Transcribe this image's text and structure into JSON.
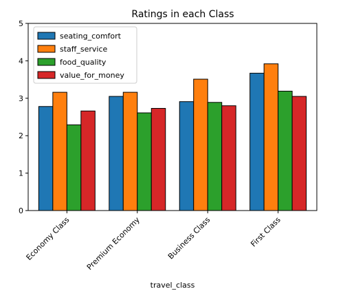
{
  "chart_data": {
    "type": "bar",
    "title": "Ratings in each Class",
    "xlabel": "travel_class",
    "ylabel": "",
    "ylim": [
      0,
      5
    ],
    "yticks": [
      0,
      1,
      2,
      3,
      4,
      5
    ],
    "categories": [
      "Economy Class",
      "Premium Economy",
      "Business Class",
      "First Class"
    ],
    "series": [
      {
        "name": "seating_comfort",
        "color": "#1f77b4",
        "values": [
          2.78,
          3.05,
          2.91,
          3.67
        ]
      },
      {
        "name": "staff_service",
        "color": "#ff7f0e",
        "values": [
          3.16,
          3.16,
          3.51,
          3.92
        ]
      },
      {
        "name": "food_quality",
        "color": "#2ca02c",
        "values": [
          2.29,
          2.61,
          2.89,
          3.19
        ]
      },
      {
        "name": "value_for_money",
        "color": "#d62728",
        "values": [
          2.66,
          2.73,
          2.8,
          3.05
        ]
      }
    ],
    "legend_position": "top-left",
    "grid": false
  }
}
